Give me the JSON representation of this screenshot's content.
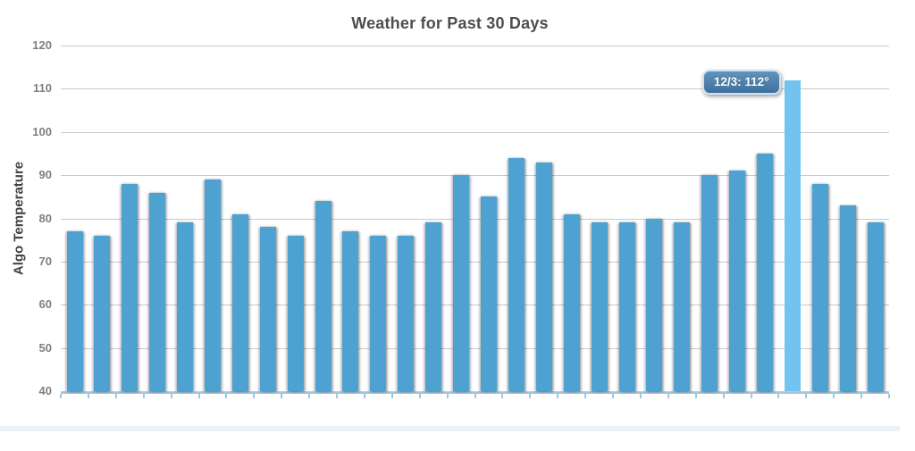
{
  "chart_data": {
    "type": "bar",
    "title": "Weather for Past 30 Days",
    "xlabel": "",
    "ylabel": "Algo Temperature",
    "ylim": [
      40,
      120
    ],
    "ytick_step": 10,
    "ytick_labels": [
      "40",
      "50",
      "60",
      "70",
      "80",
      "90",
      "100",
      "110",
      "120"
    ],
    "grid": true,
    "legend_position": "none",
    "x_tick_labels_visible": false,
    "values": [
      77,
      76,
      88,
      86,
      79,
      89,
      81,
      78,
      76,
      84,
      77,
      76,
      76,
      79,
      90,
      85,
      94,
      93,
      81,
      79,
      79,
      80,
      79,
      90,
      91,
      95,
      112,
      88,
      83,
      79
    ],
    "highlighted_bar": {
      "index": 26,
      "value": 112,
      "date": "12/3"
    },
    "tooltip": {
      "text": "12/3: 112°"
    },
    "colors": {
      "bar": "#4EA2D2",
      "bar_highlight": "#70C4EF",
      "grid_line": "#C9C9C9",
      "axis_line": "#A6C6DC",
      "tick_mark": "#9FC7E0",
      "y_label": "#7F7F7F",
      "title": "#4D4D4D",
      "tooltip_bg_top": "#6095BE",
      "tooltip_bg_bottom": "#3D6F9E",
      "tooltip_border": "#CFE2EF",
      "tooltip_text": "#FFFFFF",
      "footer_strip": "#E9F3F8"
    }
  }
}
